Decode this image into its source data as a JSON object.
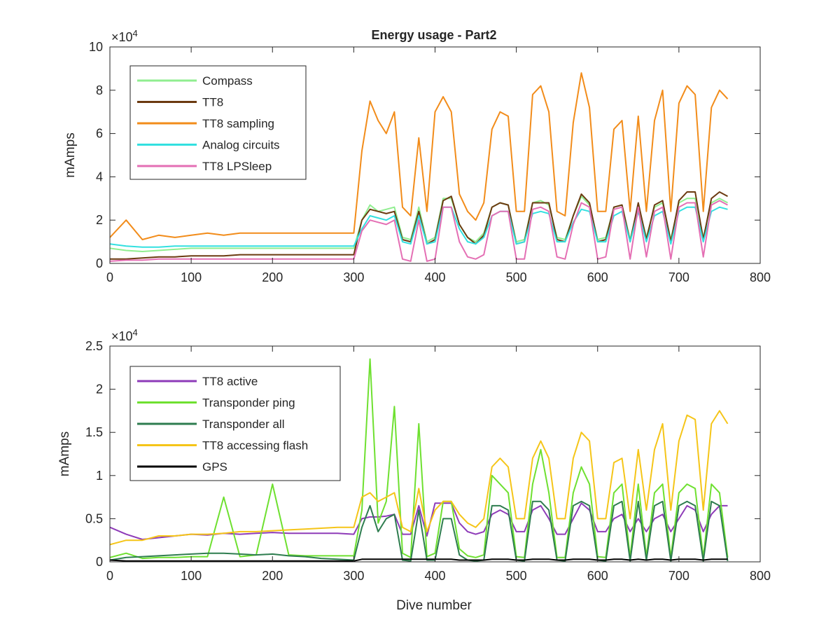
{
  "figure": {
    "title": "Energy usage - Part2",
    "xlabel": "Dive number"
  },
  "chart_data": [
    {
      "type": "line",
      "title": "Energy usage - Part2",
      "xlabel": "",
      "ylabel": "mAmps",
      "xlim": [
        0,
        800
      ],
      "ylim": [
        0,
        100000
      ],
      "x_ticks": [
        0,
        100,
        200,
        300,
        400,
        500,
        600,
        700,
        800
      ],
      "y_ticks": [
        0,
        20000,
        40000,
        60000,
        80000,
        100000
      ],
      "x_tick_labels": [
        "0",
        "100",
        "200",
        "300",
        "400",
        "500",
        "600",
        "700",
        "800"
      ],
      "y_tick_labels": [
        "0",
        "2",
        "4",
        "6",
        "8",
        "10"
      ],
      "y_exponent_label": "×10^4",
      "grid": false,
      "legend_position": "top-left",
      "x": [
        0,
        20,
        40,
        60,
        80,
        100,
        120,
        140,
        160,
        180,
        200,
        220,
        240,
        260,
        280,
        300,
        310,
        320,
        330,
        340,
        350,
        360,
        370,
        380,
        390,
        400,
        410,
        420,
        430,
        440,
        450,
        460,
        470,
        480,
        490,
        500,
        510,
        520,
        530,
        540,
        550,
        560,
        570,
        580,
        590,
        600,
        610,
        620,
        630,
        640,
        650,
        660,
        670,
        680,
        690,
        700,
        710,
        720,
        730,
        740,
        750,
        760
      ],
      "series": [
        {
          "name": "Compass",
          "color": "#90ee90",
          "values": [
            7000,
            6000,
            5500,
            6000,
            6500,
            7000,
            7000,
            7000,
            7000,
            7000,
            7000,
            7000,
            7000,
            7000,
            7000,
            7000,
            20000,
            27000,
            24000,
            25000,
            26000,
            12000,
            11000,
            26000,
            10000,
            12000,
            30000,
            30000,
            18000,
            12000,
            10000,
            14000,
            26000,
            28000,
            27000,
            10000,
            11000,
            28000,
            29000,
            27000,
            12000,
            11000,
            22000,
            31000,
            27000,
            11000,
            12000,
            26000,
            27000,
            11000,
            27000,
            12000,
            26000,
            28000,
            11000,
            28000,
            30000,
            30000,
            12000,
            28000,
            30000,
            28000
          ]
        },
        {
          "name": "TT8",
          "color": "#6b3a10",
          "values": [
            2000,
            2000,
            2500,
            3000,
            3000,
            3500,
            3500,
            3500,
            4000,
            4000,
            4000,
            4000,
            4000,
            4000,
            4000,
            4000,
            20000,
            25000,
            24000,
            23000,
            24000,
            11000,
            10000,
            24000,
            9000,
            11000,
            29000,
            31000,
            18000,
            12000,
            9000,
            13000,
            26000,
            28000,
            27000,
            9000,
            10000,
            28000,
            28000,
            28000,
            11000,
            10000,
            22000,
            32000,
            28000,
            10000,
            11000,
            26000,
            27000,
            10000,
            28000,
            11000,
            27000,
            29000,
            10000,
            29000,
            33000,
            33000,
            11000,
            30000,
            33000,
            31000
          ]
        },
        {
          "name": "TT8 sampling",
          "color": "#f28c1a",
          "values": [
            12000,
            20000,
            11000,
            13000,
            12000,
            13000,
            14000,
            13000,
            14000,
            14000,
            14000,
            14000,
            14000,
            14000,
            14000,
            14000,
            52000,
            75000,
            66000,
            60000,
            70000,
            26000,
            22000,
            58000,
            24000,
            70000,
            77000,
            70000,
            32000,
            24000,
            20000,
            28000,
            62000,
            70000,
            68000,
            24000,
            24000,
            78000,
            82000,
            70000,
            24000,
            22000,
            65000,
            88000,
            72000,
            24000,
            24000,
            62000,
            66000,
            24000,
            68000,
            24000,
            66000,
            80000,
            24000,
            74000,
            82000,
            78000,
            24000,
            72000,
            80000,
            76000
          ]
        },
        {
          "name": "Analog circuits",
          "color": "#33e0e0",
          "values": [
            9000,
            8000,
            7500,
            7500,
            8000,
            8000,
            8000,
            8000,
            8000,
            8000,
            8000,
            8000,
            8000,
            8000,
            8000,
            8000,
            16000,
            22000,
            21000,
            20000,
            22000,
            10000,
            9000,
            22000,
            9000,
            10000,
            26000,
            26000,
            16000,
            10000,
            9000,
            12000,
            22000,
            24000,
            24000,
            9000,
            10000,
            23000,
            24000,
            23000,
            10000,
            10000,
            19000,
            25000,
            24000,
            10000,
            10000,
            22000,
            24000,
            10000,
            24000,
            10000,
            22000,
            24000,
            9000,
            24000,
            26000,
            26000,
            10000,
            24000,
            26000,
            25000
          ]
        },
        {
          "name": "TT8 LPSleep",
          "color": "#e46fb4",
          "values": [
            1000,
            1500,
            1500,
            2000,
            2000,
            2000,
            2000,
            2000,
            2000,
            2000,
            2000,
            2000,
            2000,
            2000,
            2000,
            2000,
            15000,
            20000,
            19000,
            18000,
            20000,
            2000,
            1000,
            20000,
            1000,
            2000,
            26000,
            26000,
            10000,
            3000,
            2000,
            4000,
            22000,
            24000,
            24000,
            2000,
            2000,
            25000,
            26000,
            24000,
            3000,
            2000,
            18000,
            28000,
            26000,
            2000,
            3000,
            25000,
            26000,
            2000,
            26000,
            3000,
            24000,
            26000,
            2000,
            26000,
            28000,
            28000,
            3000,
            27000,
            29000,
            27000
          ]
        }
      ]
    },
    {
      "type": "line",
      "title": "",
      "xlabel": "Dive number",
      "ylabel": "mAmps",
      "xlim": [
        0,
        800
      ],
      "ylim": [
        0,
        25000
      ],
      "x_ticks": [
        0,
        100,
        200,
        300,
        400,
        500,
        600,
        700,
        800
      ],
      "y_ticks": [
        0,
        5000,
        10000,
        15000,
        20000,
        25000
      ],
      "x_tick_labels": [
        "0",
        "100",
        "200",
        "300",
        "400",
        "500",
        "600",
        "700",
        "800"
      ],
      "y_tick_labels": [
        "0",
        "0.5",
        "1",
        "1.5",
        "2",
        "2.5"
      ],
      "y_exponent_label": "×10^4",
      "grid": false,
      "legend_position": "top-left",
      "x": [
        0,
        20,
        40,
        60,
        80,
        100,
        120,
        140,
        160,
        180,
        200,
        220,
        240,
        260,
        280,
        300,
        310,
        320,
        330,
        340,
        350,
        360,
        370,
        380,
        390,
        400,
        410,
        420,
        430,
        440,
        450,
        460,
        470,
        480,
        490,
        500,
        510,
        520,
        530,
        540,
        550,
        560,
        570,
        580,
        590,
        600,
        610,
        620,
        630,
        640,
        650,
        660,
        670,
        680,
        690,
        700,
        710,
        720,
        730,
        740,
        750,
        760
      ],
      "series": [
        {
          "name": "TT8 active",
          "color": "#8e3bb8",
          "values": [
            4000,
            3200,
            2600,
            2800,
            3000,
            3200,
            3100,
            3300,
            3200,
            3300,
            3400,
            3300,
            3300,
            3300,
            3300,
            3200,
            5000,
            5200,
            5200,
            5300,
            5500,
            3200,
            3200,
            6500,
            3000,
            6800,
            6800,
            6800,
            4500,
            3500,
            3200,
            3500,
            5500,
            6000,
            5500,
            3500,
            3500,
            6000,
            6500,
            5000,
            3200,
            3200,
            5000,
            6800,
            6000,
            3500,
            3500,
            5000,
            5500,
            3500,
            5000,
            3500,
            5000,
            5500,
            3500,
            5000,
            6500,
            6000,
            3500,
            5500,
            6500,
            6500
          ]
        },
        {
          "name": "Transponder ping",
          "color": "#6ee030",
          "values": [
            500,
            1000,
            400,
            500,
            500,
            600,
            600,
            7500,
            600,
            800,
            9000,
            800,
            700,
            700,
            700,
            700,
            6000,
            23500,
            4500,
            7000,
            18000,
            1000,
            500,
            16000,
            600,
            1000,
            7000,
            7000,
            1500,
            700,
            500,
            800,
            10000,
            9000,
            8000,
            600,
            500,
            9000,
            13000,
            8000,
            500,
            500,
            8000,
            11000,
            9000,
            600,
            500,
            8000,
            9000,
            500,
            9000,
            600,
            8000,
            9000,
            500,
            8000,
            9000,
            8500,
            500,
            9000,
            8000,
            500
          ]
        },
        {
          "name": "Transponder all",
          "color": "#2e7d4f",
          "values": [
            200,
            500,
            600,
            700,
            800,
            900,
            1000,
            1000,
            900,
            800,
            900,
            700,
            600,
            400,
            300,
            200,
            4000,
            6500,
            3500,
            5000,
            5500,
            200,
            100,
            6000,
            200,
            200,
            5000,
            5000,
            800,
            200,
            100,
            200,
            6500,
            6500,
            6000,
            200,
            100,
            7000,
            7000,
            6000,
            200,
            100,
            6500,
            7000,
            6500,
            200,
            100,
            6500,
            7000,
            100,
            7000,
            200,
            6500,
            7000,
            100,
            6500,
            7000,
            6500,
            100,
            7000,
            6500,
            100
          ]
        },
        {
          "name": "TT8 accessing flash",
          "color": "#f5c518",
          "values": [
            2000,
            2500,
            2500,
            3000,
            3000,
            3200,
            3200,
            3300,
            3500,
            3500,
            3600,
            3700,
            3800,
            3900,
            4000,
            4000,
            7500,
            8000,
            7000,
            7500,
            8000,
            4000,
            3500,
            8500,
            3500,
            6000,
            7000,
            7000,
            5500,
            4500,
            4000,
            5000,
            11000,
            12000,
            11000,
            5000,
            5000,
            12000,
            14000,
            12000,
            5000,
            5000,
            12000,
            15000,
            14000,
            5000,
            5000,
            11500,
            12000,
            5000,
            13000,
            6000,
            13000,
            16000,
            6000,
            14000,
            17000,
            16500,
            6000,
            16000,
            17500,
            16000
          ]
        },
        {
          "name": "GPS",
          "color": "#000000",
          "values": [
            200,
            100,
            100,
            100,
            100,
            100,
            100,
            100,
            100,
            100,
            100,
            100,
            100,
            100,
            100,
            100,
            300,
            300,
            300,
            300,
            300,
            300,
            300,
            300,
            300,
            300,
            300,
            300,
            200,
            200,
            200,
            200,
            300,
            300,
            300,
            200,
            200,
            300,
            300,
            300,
            200,
            200,
            300,
            300,
            300,
            200,
            200,
            300,
            300,
            200,
            300,
            200,
            300,
            300,
            200,
            300,
            300,
            300,
            200,
            300,
            300,
            300
          ]
        }
      ]
    }
  ]
}
